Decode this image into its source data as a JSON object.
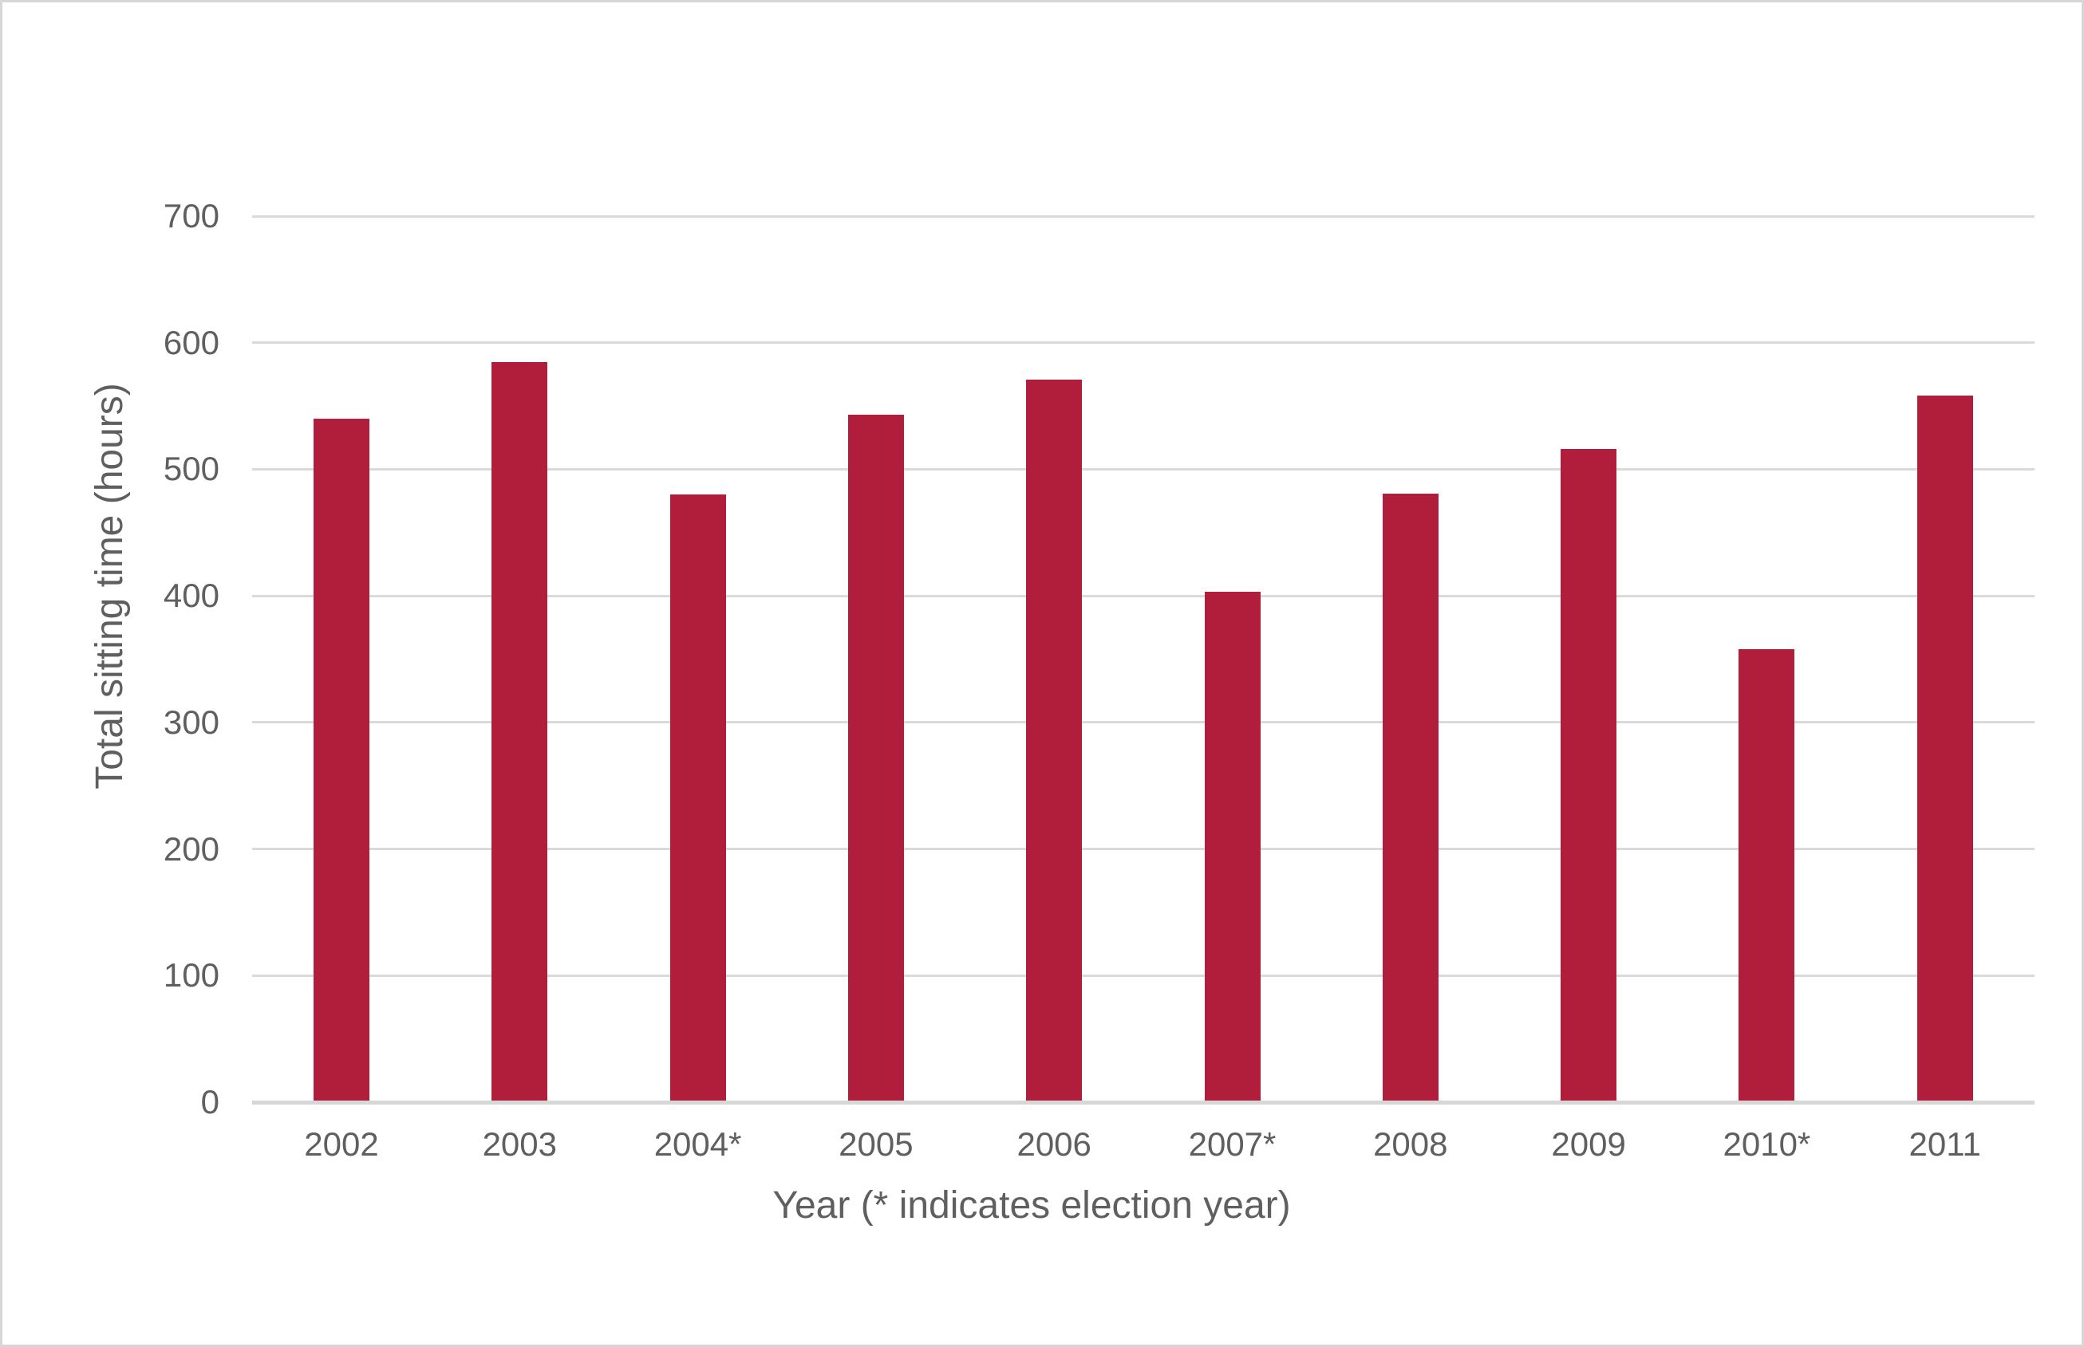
{
  "chart_data": {
    "type": "bar",
    "title": "",
    "xlabel": "Year (* indicates election year)",
    "ylabel": "Total sitting time (hours)",
    "categories": [
      "2002",
      "2003",
      "2004*",
      "2005",
      "2006",
      "2007*",
      "2008",
      "2009",
      "2010*",
      "2011"
    ],
    "values": [
      540,
      585,
      480,
      543,
      571,
      403,
      481,
      516,
      358,
      558
    ],
    "series": [
      {
        "name": "Total sitting time",
        "values": [
          540,
          585,
          480,
          543,
          571,
          403,
          481,
          516,
          358,
          558
        ]
      }
    ],
    "ylim": [
      0,
      700
    ],
    "yticks": [
      0,
      100,
      200,
      300,
      400,
      500,
      600,
      700
    ],
    "grid": "horizontal",
    "legend_position": "none",
    "bar_color": "#B01E3C"
  },
  "colors": {
    "bar": "#B01E3C",
    "gridline": "#DADADA",
    "axis_line": "#D7D7D7",
    "text": "#5F5F5F",
    "canvas_border": "#D6D6D6",
    "background": "#FFFFFF"
  }
}
